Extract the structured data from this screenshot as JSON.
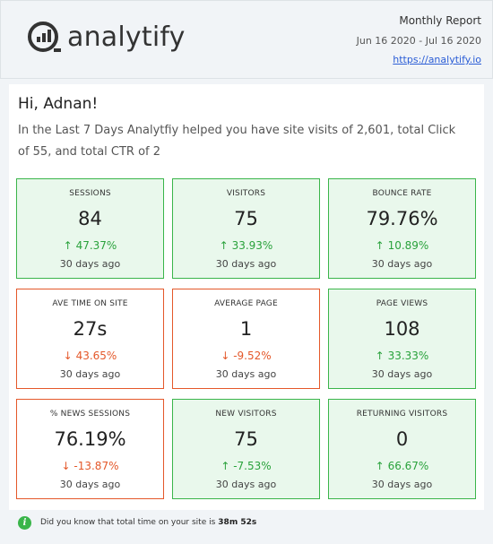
{
  "brand": {
    "name": "analytify"
  },
  "header": {
    "report_title": "Monthly Report",
    "date_range": "Jun 16 2020 - Jul 16 2020",
    "link_text": "https://analytify.io"
  },
  "greeting": "Hi, Adnan!",
  "intro": "In the Last 7 Days Analytfiy helped you have site visits of 2,601, total Click of 55, and total CTR of 2",
  "arrows": {
    "up": "↑",
    "down": "↓"
  },
  "cards": [
    {
      "label": "SESSIONS",
      "value": "84",
      "change": "47.37%",
      "period": "30 days ago",
      "trend": "up"
    },
    {
      "label": "VISITORS",
      "value": "75",
      "change": "33.93%",
      "period": "30 days ago",
      "trend": "up"
    },
    {
      "label": "BOUNCE RATE",
      "value": "79.76%",
      "change": "10.89%",
      "period": "30 days ago",
      "trend": "up"
    },
    {
      "label": "AVE TIME ON SITE",
      "value": "27s",
      "change": "43.65%",
      "period": "30 days ago",
      "trend": "down"
    },
    {
      "label": "AVERAGE PAGE",
      "value": "1",
      "change": "-9.52%",
      "period": "30 days ago",
      "trend": "down"
    },
    {
      "label": "PAGE VIEWS",
      "value": "108",
      "change": "33.33%",
      "period": "30 days ago",
      "trend": "up"
    },
    {
      "label": "% NEWS SESSIONS",
      "value": "76.19%",
      "change": "-13.87%",
      "period": "30 days ago",
      "trend": "down"
    },
    {
      "label": "NEW VISITORS",
      "value": "75",
      "change": "-7.53%",
      "period": "30 days ago",
      "trend": "up"
    },
    {
      "label": "RETURNING VISITORS",
      "value": "0",
      "change": "66.67%",
      "period": "30 days ago",
      "trend": "up"
    }
  ],
  "footer": {
    "text": "Did you know that total time on your site is",
    "value": "38m 52s"
  },
  "colors": {
    "positive_border": "#3ab54a",
    "positive_bg": "#e9f8ec",
    "negative_border": "#e4582a",
    "link": "#2b5dd6"
  }
}
